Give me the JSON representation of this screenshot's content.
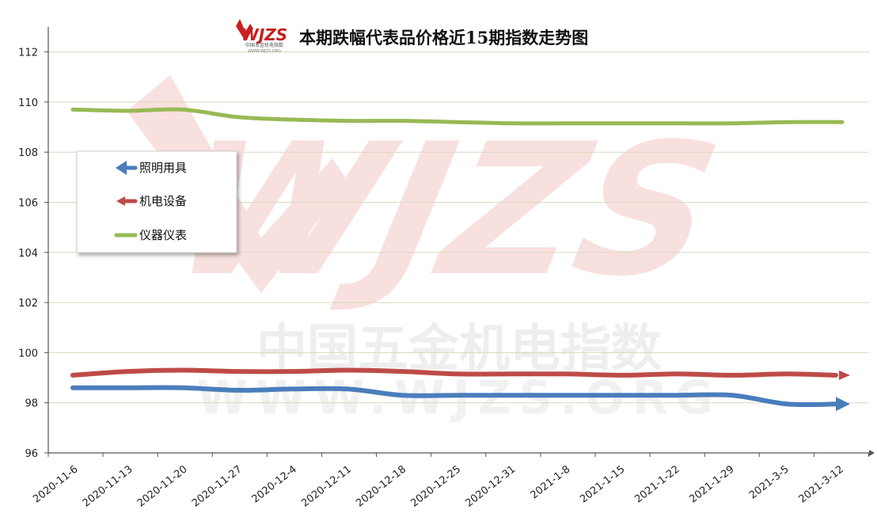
{
  "chart_data": {
    "type": "line",
    "title": "本期跌幅代表品价格近15期指数走势图",
    "categories": [
      "2020-11-6",
      "2020-11-13",
      "2020-11-20",
      "2020-11-27",
      "2020-12-4",
      "2020-12-11",
      "2020-12-18",
      "2020-12-25",
      "2020-12-31",
      "2021-1-8",
      "2021-1-15",
      "2021-1-22",
      "2021-1-29",
      "2021-3-5",
      "2021-3-12"
    ],
    "ylim": [
      96,
      113
    ],
    "yticks": [
      96,
      98,
      100,
      102,
      104,
      106,
      108,
      110,
      112
    ],
    "grid": true,
    "legend_position": "left",
    "series": [
      {
        "name": "照明用具",
        "color": "#4a7ebb",
        "marker": "arrow",
        "values": [
          98.6,
          98.6,
          98.6,
          98.5,
          98.55,
          98.55,
          98.3,
          98.3,
          98.3,
          98.3,
          98.3,
          98.3,
          98.3,
          97.95,
          97.95
        ]
      },
      {
        "name": "机电设备",
        "color": "#be4b48",
        "marker": "arrow",
        "values": [
          99.1,
          99.25,
          99.3,
          99.25,
          99.25,
          99.3,
          99.25,
          99.15,
          99.15,
          99.15,
          99.1,
          99.15,
          99.1,
          99.15,
          99.1
        ]
      },
      {
        "name": "仪器仪表",
        "color": "#98b954",
        "marker": "line",
        "values": [
          109.7,
          109.65,
          109.7,
          109.4,
          109.3,
          109.25,
          109.25,
          109.2,
          109.15,
          109.15,
          109.15,
          109.15,
          109.15,
          109.2,
          109.2
        ]
      }
    ]
  },
  "logo": {
    "brand": "WJZS",
    "subtitle": "中国五金机电指数",
    "url_text": "WWW.WJZS.ORG"
  },
  "watermark": {
    "brand": "WJZS",
    "chinese": "中国五金机电指数",
    "url": "WWW.WJZS.ORG"
  }
}
